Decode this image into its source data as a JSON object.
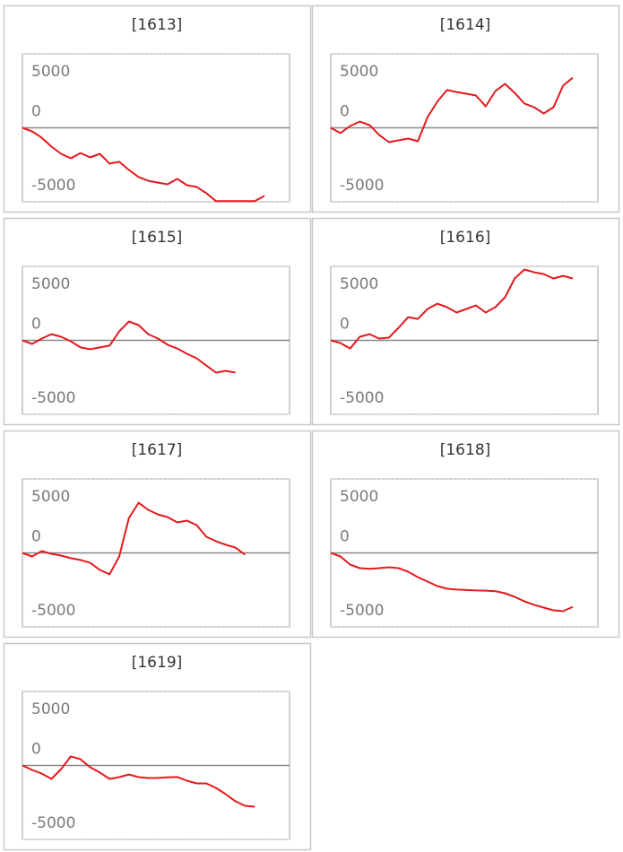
{
  "chart_data": [
    {
      "type": "line",
      "title": "[1613]",
      "color": "#e31a1c",
      "ylim": [
        -5000,
        5000
      ],
      "yticks": [
        -5000,
        0,
        5000
      ],
      "grid": true,
      "values": [
        0,
        -240,
        -670,
        -1270,
        -1760,
        -2060,
        -1700,
        -2000,
        -1760,
        -2420,
        -2300,
        -2850,
        -3330,
        -3580,
        -3700,
        -3820,
        -3450,
        -3880,
        -4000,
        -4420,
        -4960,
        -4960,
        -4960,
        -4960,
        -4960,
        -4600
      ]
    },
    {
      "type": "line",
      "title": "[1614]",
      "color": "#e31a1c",
      "ylim": [
        -5000,
        5000
      ],
      "yticks": [
        -5000,
        0,
        5000
      ],
      "grid": true,
      "values": [
        0,
        -360,
        120,
        420,
        180,
        -480,
        -970,
        -850,
        -730,
        -910,
        730,
        1760,
        2550,
        2420,
        2300,
        2180,
        1450,
        2480,
        2970,
        2360,
        1640,
        1390,
        970,
        1390,
        2850,
        3390
      ]
    },
    {
      "type": "line",
      "title": "[1615]",
      "color": "#e31a1c",
      "ylim": [
        -5000,
        5000
      ],
      "yticks": [
        -5000,
        0,
        5000
      ],
      "grid": true,
      "values": [
        0,
        -240,
        120,
        420,
        240,
        -60,
        -480,
        -600,
        -480,
        -360,
        600,
        1270,
        1030,
        420,
        120,
        -300,
        -550,
        -910,
        -1210,
        -1700,
        -2180,
        -2060,
        -2180
      ]
    },
    {
      "type": "line",
      "title": "[1616]",
      "color": "#e31a1c",
      "ylim": [
        -5000,
        5000
      ],
      "yticks": [
        -5000,
        0,
        5000
      ],
      "grid": true,
      "values": [
        0,
        -180,
        -550,
        240,
        420,
        120,
        180,
        850,
        1570,
        1450,
        2120,
        2480,
        2240,
        1880,
        2120,
        2360,
        1880,
        2240,
        2910,
        4180,
        4790,
        4600,
        4480,
        4180,
        4360,
        4180
      ]
    },
    {
      "type": "line",
      "title": "[1617]",
      "color": "#e31a1c",
      "ylim": [
        -5000,
        5000
      ],
      "yticks": [
        -5000,
        0,
        5000
      ],
      "grid": true,
      "values": [
        0,
        -240,
        120,
        -60,
        -180,
        -360,
        -480,
        -670,
        -1150,
        -1450,
        -240,
        2360,
        3390,
        2910,
        2600,
        2420,
        2060,
        2180,
        1880,
        1090,
        790,
        550,
        360,
        -120
      ]
    },
    {
      "type": "line",
      "title": "[1618]",
      "color": "#e31a1c",
      "ylim": [
        -5000,
        5000
      ],
      "yticks": [
        -5000,
        0,
        5000
      ],
      "grid": true,
      "values": [
        0,
        -240,
        -790,
        -1030,
        -1070,
        -1030,
        -970,
        -1030,
        -1270,
        -1640,
        -1940,
        -2240,
        -2420,
        -2480,
        -2510,
        -2540,
        -2550,
        -2590,
        -2730,
        -2970,
        -3270,
        -3510,
        -3700,
        -3880,
        -3940,
        -3640
      ]
    },
    {
      "type": "line",
      "title": "[1619]",
      "color": "#e31a1c",
      "ylim": [
        -5000,
        5000
      ],
      "yticks": [
        -5000,
        0,
        5000
      ],
      "grid": true,
      "values": [
        0,
        -300,
        -550,
        -910,
        -240,
        610,
        420,
        -120,
        -480,
        -910,
        -790,
        -610,
        -790,
        -850,
        -840,
        -800,
        -780,
        -1030,
        -1210,
        -1210,
        -1520,
        -1940,
        -2420,
        -2730,
        -2790
      ]
    }
  ]
}
